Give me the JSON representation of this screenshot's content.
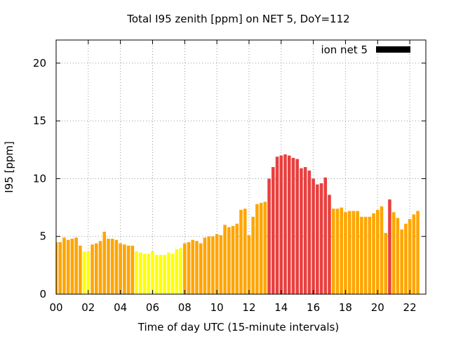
{
  "chart_data": {
    "type": "bar",
    "title": "Total I95 zenith [ppm] on NET 5, DoY=112",
    "xlabel": "Time of day UTC (15-minute intervals)",
    "ylabel": "I95 [ppm]",
    "xlim": [
      0,
      23
    ],
    "ylim": [
      0,
      22
    ],
    "grid": true,
    "legend": {
      "position": "top-right",
      "label": "ion net 5",
      "color": "#000000"
    },
    "x_ticks": [
      "00",
      "02",
      "04",
      "06",
      "08",
      "10",
      "12",
      "14",
      "16",
      "18",
      "20",
      "22"
    ],
    "y_ticks": [
      "0",
      "5",
      "10",
      "15",
      "20"
    ],
    "bar_width_hours": 0.2,
    "x_start_hour": 0,
    "x_step_hours": 0.25,
    "colors": {
      "low": "#ffff00",
      "medium": "#ffa500",
      "high": "#e8403f"
    },
    "bars": [
      {
        "v": 4.5,
        "c": "medium"
      },
      {
        "v": 4.5,
        "c": "medium"
      },
      {
        "v": 4.9,
        "c": "medium"
      },
      {
        "v": 4.7,
        "c": "medium"
      },
      {
        "v": 4.8,
        "c": "medium"
      },
      {
        "v": 4.9,
        "c": "medium"
      },
      {
        "v": 4.2,
        "c": "medium"
      },
      {
        "v": 3.7,
        "c": "low"
      },
      {
        "v": 3.7,
        "c": "low"
      },
      {
        "v": 4.3,
        "c": "medium"
      },
      {
        "v": 4.4,
        "c": "medium"
      },
      {
        "v": 4.6,
        "c": "medium"
      },
      {
        "v": 5.4,
        "c": "medium"
      },
      {
        "v": 4.8,
        "c": "medium"
      },
      {
        "v": 4.8,
        "c": "medium"
      },
      {
        "v": 4.7,
        "c": "medium"
      },
      {
        "v": 4.4,
        "c": "medium"
      },
      {
        "v": 4.3,
        "c": "medium"
      },
      {
        "v": 4.2,
        "c": "medium"
      },
      {
        "v": 4.2,
        "c": "medium"
      },
      {
        "v": 3.7,
        "c": "low"
      },
      {
        "v": 3.6,
        "c": "low"
      },
      {
        "v": 3.5,
        "c": "low"
      },
      {
        "v": 3.5,
        "c": "low"
      },
      {
        "v": 3.7,
        "c": "low"
      },
      {
        "v": 3.4,
        "c": "low"
      },
      {
        "v": 3.4,
        "c": "low"
      },
      {
        "v": 3.4,
        "c": "low"
      },
      {
        "v": 3.6,
        "c": "low"
      },
      {
        "v": 3.5,
        "c": "low"
      },
      {
        "v": 3.9,
        "c": "low"
      },
      {
        "v": 4.0,
        "c": "low"
      },
      {
        "v": 4.4,
        "c": "medium"
      },
      {
        "v": 4.5,
        "c": "medium"
      },
      {
        "v": 4.7,
        "c": "medium"
      },
      {
        "v": 4.6,
        "c": "medium"
      },
      {
        "v": 4.4,
        "c": "medium"
      },
      {
        "v": 4.9,
        "c": "medium"
      },
      {
        "v": 5.0,
        "c": "medium"
      },
      {
        "v": 5.0,
        "c": "medium"
      },
      {
        "v": 5.2,
        "c": "medium"
      },
      {
        "v": 5.1,
        "c": "medium"
      },
      {
        "v": 6.0,
        "c": "medium"
      },
      {
        "v": 5.8,
        "c": "medium"
      },
      {
        "v": 5.9,
        "c": "medium"
      },
      {
        "v": 6.1,
        "c": "medium"
      },
      {
        "v": 7.3,
        "c": "medium"
      },
      {
        "v": 7.4,
        "c": "medium"
      },
      {
        "v": 5.1,
        "c": "medium"
      },
      {
        "v": 6.7,
        "c": "medium"
      },
      {
        "v": 7.8,
        "c": "medium"
      },
      {
        "v": 7.9,
        "c": "medium"
      },
      {
        "v": 8.0,
        "c": "medium"
      },
      {
        "v": 10.0,
        "c": "high"
      },
      {
        "v": 11.0,
        "c": "high"
      },
      {
        "v": 11.9,
        "c": "high"
      },
      {
        "v": 12.0,
        "c": "high"
      },
      {
        "v": 12.1,
        "c": "high"
      },
      {
        "v": 12.0,
        "c": "high"
      },
      {
        "v": 11.8,
        "c": "high"
      },
      {
        "v": 11.7,
        "c": "high"
      },
      {
        "v": 10.9,
        "c": "high"
      },
      {
        "v": 11.0,
        "c": "high"
      },
      {
        "v": 10.7,
        "c": "high"
      },
      {
        "v": 10.0,
        "c": "high"
      },
      {
        "v": 9.5,
        "c": "high"
      },
      {
        "v": 9.6,
        "c": "high"
      },
      {
        "v": 10.1,
        "c": "high"
      },
      {
        "v": 8.6,
        "c": "high"
      },
      {
        "v": 7.4,
        "c": "medium"
      },
      {
        "v": 7.4,
        "c": "medium"
      },
      {
        "v": 7.5,
        "c": "medium"
      },
      {
        "v": 7.1,
        "c": "medium"
      },
      {
        "v": 7.2,
        "c": "medium"
      },
      {
        "v": 7.2,
        "c": "medium"
      },
      {
        "v": 7.2,
        "c": "medium"
      },
      {
        "v": 6.7,
        "c": "medium"
      },
      {
        "v": 6.7,
        "c": "medium"
      },
      {
        "v": 6.7,
        "c": "medium"
      },
      {
        "v": 7.0,
        "c": "medium"
      },
      {
        "v": 7.3,
        "c": "medium"
      },
      {
        "v": 7.6,
        "c": "medium"
      },
      {
        "v": 5.3,
        "c": "medium"
      },
      {
        "v": 8.2,
        "c": "high"
      },
      {
        "v": 7.1,
        "c": "medium"
      },
      {
        "v": 6.6,
        "c": "medium"
      },
      {
        "v": 5.6,
        "c": "medium"
      },
      {
        "v": 6.1,
        "c": "medium"
      },
      {
        "v": 6.5,
        "c": "medium"
      },
      {
        "v": 6.9,
        "c": "medium"
      },
      {
        "v": 7.2,
        "c": "medium"
      }
    ]
  }
}
